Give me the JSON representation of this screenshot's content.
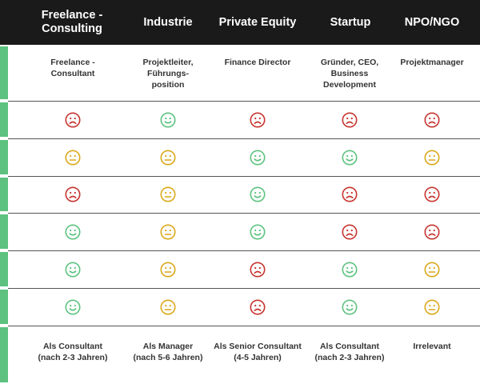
{
  "colors": {
    "happy": "#5dc27f",
    "neutral": "#d9a81a",
    "sad": "#c7332e",
    "header_bg": "#1a1a1a"
  },
  "header": {
    "columns": [
      {
        "label": "Freelance -\nConsulting"
      },
      {
        "label": "Industrie"
      },
      {
        "label": "Private Equity"
      },
      {
        "label": "Startup"
      },
      {
        "label": "NPO/NGO"
      }
    ]
  },
  "roles": [
    "Freelance -\nConsultant",
    "Projektleiter,\nFührungs-\nposition",
    "Finance Director",
    "Gründer, CEO,\nBusiness\nDevelopment",
    "Projektmanager"
  ],
  "ratings": [
    [
      "sad",
      "happy",
      "sad",
      "sad",
      "sad"
    ],
    [
      "neutral",
      "neutral",
      "happy",
      "happy",
      "neutral"
    ],
    [
      "sad",
      "neutral",
      "happy",
      "sad",
      "sad"
    ],
    [
      "happy",
      "neutral",
      "happy",
      "sad",
      "sad"
    ],
    [
      "happy",
      "neutral",
      "sad",
      "happy",
      "neutral"
    ],
    [
      "happy",
      "neutral",
      "sad",
      "happy",
      "neutral"
    ]
  ],
  "transitions": [
    "Als Consultant\n(nach 2-3 Jahren)",
    "Als Manager\n(nach 5-6 Jahren)",
    "Als Senior Consultant\n(4-5 Jahren)",
    "Als Consultant\n(nach 2-3 Jahren)",
    "Irrelevant"
  ]
}
